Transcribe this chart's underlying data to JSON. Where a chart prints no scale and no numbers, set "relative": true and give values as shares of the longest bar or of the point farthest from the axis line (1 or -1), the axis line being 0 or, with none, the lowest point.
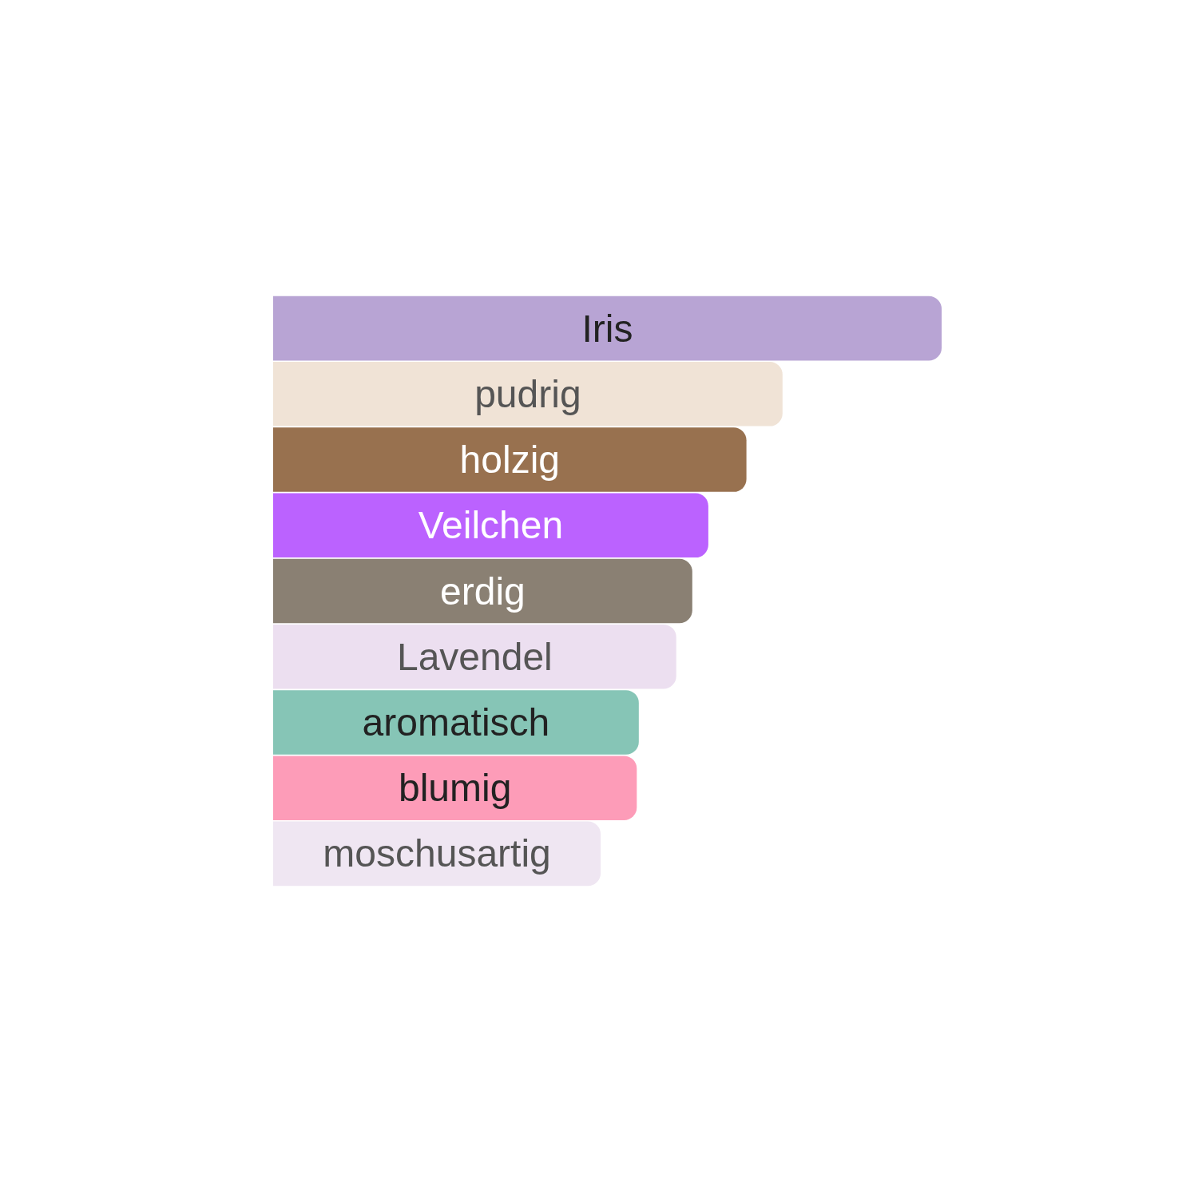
{
  "chart_data": {
    "type": "bar",
    "orientation": "horizontal",
    "relative": true,
    "categories": [
      "Iris",
      "pudrig",
      "holzig",
      "Veilchen",
      "erdig",
      "Lavendel",
      "aromatisch",
      "blumig",
      "moschusartig"
    ],
    "values": [
      1,
      0.762,
      0.708,
      0.651,
      0.627,
      0.603,
      0.547,
      0.544,
      0.49
    ],
    "colors": [
      "#b8a4d4",
      "#f0e3d6",
      "#98714f",
      "#bb62ff",
      "#8a8073",
      "#ecdff0",
      "#86c5b6",
      "#fd9cb8",
      "#efe6f2"
    ],
    "data_labels": false
  }
}
